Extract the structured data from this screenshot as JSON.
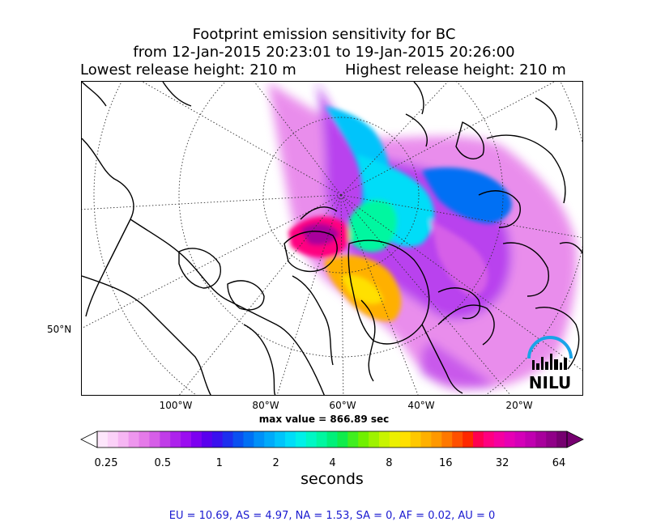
{
  "title": {
    "line1": "Footprint emission sensitivity for BC",
    "line2": "from 12-Jan-2015 20:23:01 to 19-Jan-2015 20:26:00",
    "lowest_release": "Lowest release height: 210 m",
    "highest_release": "Highest release height: 210 m"
  },
  "map": {
    "lon_labels": [
      "100°W",
      "80°W",
      "60°W",
      "40°W",
      "20°W"
    ],
    "lat_labels": [
      "50°N"
    ],
    "logo_text": "NILU",
    "max_value": "max value = 866.89 sec"
  },
  "colorbar": {
    "tick_labels": [
      "0.25",
      "0.5",
      "1",
      "2",
      "4",
      "8",
      "16",
      "32",
      "64"
    ],
    "unit": "seconds",
    "colors": [
      "#fde6fb",
      "#fbd1f8",
      "#f6b6f3",
      "#ee96ee",
      "#e57ae9",
      "#d65ee8",
      "#c03de8",
      "#ad22ec",
      "#9b0df0",
      "#7d00f0",
      "#5a00ee",
      "#3a10ee",
      "#1d2eee",
      "#0a50f0",
      "#0070f4",
      "#0090f8",
      "#00aafa",
      "#00c4fb",
      "#00ddf8",
      "#00f0e8",
      "#00f7c4",
      "#00f7a0",
      "#00f07a",
      "#10ec4c",
      "#40ee20",
      "#70f000",
      "#9ef200",
      "#c8f400",
      "#ecf000",
      "#ffe000",
      "#ffc800",
      "#ffb000",
      "#ff9800",
      "#ff7800",
      "#ff5000",
      "#ff2800",
      "#ff0050",
      "#ff0080",
      "#f500a0",
      "#e600b4",
      "#d400b8",
      "#c000b0",
      "#a8009c",
      "#900088",
      "#760070"
    ]
  },
  "region_summary": "EU = 10.69,  AS = 4.97,  NA = 1.53,  SA = 0,  AF = 0.02,  AU = 0"
}
